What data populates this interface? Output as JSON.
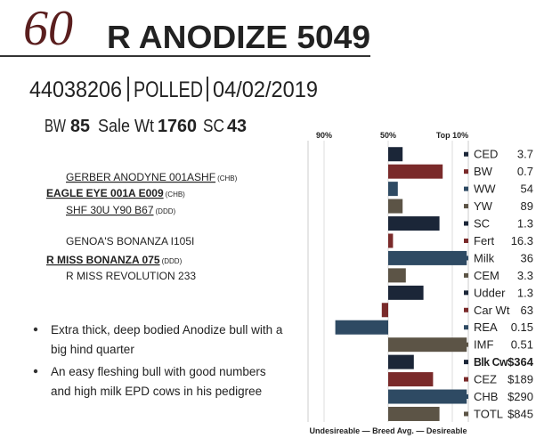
{
  "header": {
    "lot": "60",
    "name": "R ANODIZE 5049"
  },
  "info": {
    "registration": "44038206",
    "polled": "POLLED",
    "date": "04/02/2019"
  },
  "stats": {
    "bw_label": "BW",
    "bw": "85",
    "sale_wt_label": "Sale Wt",
    "sale_wt": "1760",
    "sc_label": "SC",
    "sc": "43"
  },
  "pedigree": {
    "sire_side": [
      {
        "name": "GERBER ANODYNE 001ASHF",
        "tag": "(CHB)"
      },
      {
        "name": "EAGLE EYE 001A E009",
        "tag": "(CHB)"
      },
      {
        "name": "SHF 30U Y90 B67",
        "tag": "(DDD)"
      }
    ],
    "dam_side": [
      {
        "name": "GENOA'S BONANZA I105I",
        "tag": null
      },
      {
        "name": "R MISS BONANZA 075",
        "tag": "(DDD)"
      },
      {
        "name": "R MISS REVOLUTION 233",
        "tag": null
      }
    ]
  },
  "bullets": [
    [
      "Extra thick, deep bodied Anodize bull with a",
      "big hind quarter"
    ],
    [
      "An easy fleshing bull with good numbers",
      "and high milk EPD cows in his pedigree"
    ]
  ],
  "chart_data": {
    "type": "bar",
    "orientation": "horizontal",
    "xlabel": "Undesireable — Breed Avg. — Desireable",
    "categories": [
      "CED",
      "BW",
      "WW",
      "YW",
      "SC",
      "Fert",
      "Milk",
      "CEM",
      "Udder",
      "Car Wt",
      "REA",
      "IMF",
      "Blk Cw",
      "CEZ",
      "CHB",
      "TOTL"
    ],
    "trait_values": [
      "3.7",
      "0.7",
      "54",
      "89",
      "1.3",
      "16.3",
      "36",
      "3.3",
      "1.3",
      "63",
      "0.15",
      "0.51",
      "$364",
      "$189",
      "$290",
      "$845"
    ],
    "values": [
      41,
      16,
      44,
      41,
      18,
      47,
      1,
      39,
      28,
      54,
      83,
      1,
      34,
      22,
      1,
      18
    ],
    "colors": [
      "#1b2638",
      "#7a2a2a",
      "#2e4a63",
      "#5c5446",
      "#1b2638",
      "#7a2a2a",
      "#2e4a63",
      "#5c5446",
      "#1b2638",
      "#7a2a2a",
      "#2e4a63",
      "#5c5446",
      "#1b2638",
      "#7a2a2a",
      "#2e4a63",
      "#5c5446"
    ],
    "bold_category": "Blk Cw",
    "baseline": 50,
    "xlim": [
      100,
      0
    ],
    "xticks": [
      {
        "value": 90,
        "label": "90%"
      },
      {
        "value": 50,
        "label": "50%"
      },
      {
        "value": 10,
        "label": "Top 10%"
      }
    ]
  }
}
